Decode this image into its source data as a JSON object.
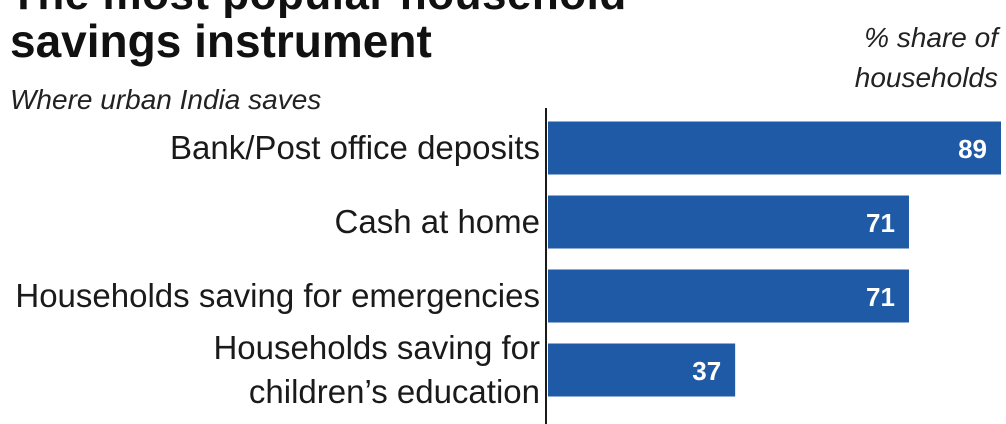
{
  "header": {
    "title_cut": "The most popular household",
    "title": "savings instrument",
    "subtitle": "Where urban India saves",
    "unit_label": "% share of\nhouseholds"
  },
  "colors": {
    "bar": "#1f5aa6",
    "value_text": "#ffffff",
    "axis": "#1a1a1a"
  },
  "chart_data": {
    "type": "bar",
    "orientation": "horizontal",
    "title": "savings instrument",
    "subtitle": "Where urban India saves",
    "xlabel": "% share of households",
    "ylabel": "",
    "categories": [
      [
        "Bank/Post office deposits"
      ],
      [
        "Cash at home"
      ],
      [
        "Households saving for emergencies"
      ],
      [
        "Households saving for",
        "children’s education"
      ]
    ],
    "values": [
      89,
      71,
      71,
      37
    ],
    "value_labels": [
      "89",
      "71",
      "71",
      "37"
    ],
    "xlim": [
      0,
      89
    ],
    "grid": false,
    "legend": "none"
  }
}
